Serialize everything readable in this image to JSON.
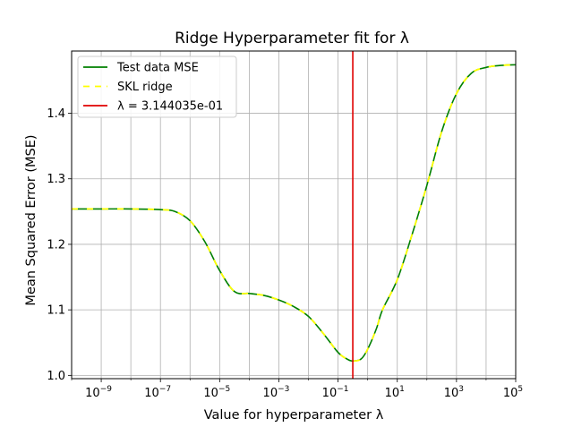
{
  "chart_data": {
    "type": "line",
    "title": "Ridge Hyperparameter fit for λ",
    "xlabel": "Value for hyperparameter λ",
    "ylabel": "Mean Squared Error (MSE)",
    "xscale": "log",
    "xlim": [
      1e-10,
      100000.0
    ],
    "ylim": [
      0.995,
      1.495
    ],
    "grid": true,
    "legend_position": "top-left",
    "x_ticks": [
      {
        "base": "10",
        "exp": "−9",
        "value": 1e-09
      },
      {
        "base": "10",
        "exp": "−7",
        "value": 1e-07
      },
      {
        "base": "10",
        "exp": "−5",
        "value": 1e-05
      },
      {
        "base": "10",
        "exp": "−3",
        "value": 0.001
      },
      {
        "base": "10",
        "exp": "−1",
        "value": 0.1
      },
      {
        "base": "10",
        "exp": "1",
        "value": 10
      },
      {
        "base": "10",
        "exp": "3",
        "value": 1000
      },
      {
        "base": "10",
        "exp": "5",
        "value": 100000
      }
    ],
    "y_ticks": [
      "1.0",
      "1.1",
      "1.2",
      "1.3",
      "1.4"
    ],
    "y_tick_values": [
      1.0,
      1.1,
      1.2,
      1.3,
      1.4
    ],
    "series": [
      {
        "name": "Test data MSE",
        "style": "solid",
        "color": "#008000",
        "x": [
          1e-10,
          1e-09,
          1e-08,
          1e-07,
          3.16e-07,
          1e-06,
          3.16e-06,
          1e-05,
          3.16e-05,
          0.0001,
          0.000316,
          0.001,
          0.00316,
          0.01,
          0.0316,
          0.1,
          0.2,
          0.3144,
          0.6,
          1,
          2,
          3.16,
          10,
          31.6,
          100,
          316,
          1000,
          3162,
          10000,
          31623,
          100000
        ],
        "y": [
          1.254,
          1.254,
          1.254,
          1.253,
          1.25,
          1.236,
          1.204,
          1.16,
          1.128,
          1.125,
          1.122,
          1.115,
          1.105,
          1.09,
          1.064,
          1.035,
          1.025,
          1.022,
          1.025,
          1.04,
          1.072,
          1.1,
          1.146,
          1.215,
          1.29,
          1.372,
          1.43,
          1.461,
          1.47,
          1.473,
          1.474
        ]
      },
      {
        "name": "SKL ridge",
        "style": "dashed",
        "color": "#ffff00",
        "x": [
          1e-10,
          1e-09,
          1e-08,
          1e-07,
          3.16e-07,
          1e-06,
          3.16e-06,
          1e-05,
          3.16e-05,
          0.0001,
          0.000316,
          0.001,
          0.00316,
          0.01,
          0.0316,
          0.1,
          0.2,
          0.3144,
          0.6,
          1,
          2,
          3.16,
          10,
          31.6,
          100,
          316,
          1000,
          3162,
          10000,
          31623,
          100000
        ],
        "y": [
          1.254,
          1.254,
          1.254,
          1.253,
          1.25,
          1.236,
          1.204,
          1.16,
          1.128,
          1.125,
          1.122,
          1.115,
          1.105,
          1.09,
          1.064,
          1.035,
          1.025,
          1.022,
          1.025,
          1.04,
          1.072,
          1.1,
          1.146,
          1.215,
          1.29,
          1.372,
          1.43,
          1.461,
          1.47,
          1.473,
          1.474
        ]
      },
      {
        "name": "λ = 3.144035e-01",
        "style": "vertical-line",
        "color": "#e00000",
        "x_value": 0.3144035
      }
    ]
  }
}
